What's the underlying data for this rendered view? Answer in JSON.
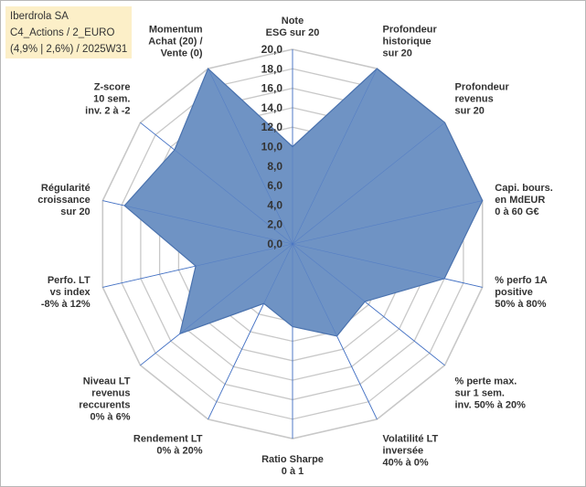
{
  "title_box": {
    "line1": "Iberdrola SA",
    "line2": "C4_Actions / 2_EURO",
    "line3": "(4,9% | 2,6%) / 2025W31"
  },
  "chart_data": {
    "type": "radar",
    "r_min": 0,
    "r_max": 20,
    "tick_labels": [
      "0,0",
      "2,0",
      "4,0",
      "6,0",
      "8,0",
      "10,0",
      "12,0",
      "14,0",
      "16,0",
      "18,0",
      "20,0"
    ],
    "axes": [
      {
        "lines": [
          "Note",
          "ESG sur 20"
        ],
        "value": 10
      },
      {
        "lines": [
          "Profondeur",
          "historique",
          "sur 20"
        ],
        "value": 20
      },
      {
        "lines": [
          "Profondeur",
          "revenus",
          "sur 20"
        ],
        "value": 20
      },
      {
        "lines": [
          "Capi. bours.",
          "en MdEUR",
          "0 à 60 G€"
        ],
        "value": 20
      },
      {
        "lines": [
          "% perfo 1A",
          "positive",
          "50% à 80%"
        ],
        "value": 16
      },
      {
        "lines": [
          "% perte max.",
          "sur 1 sem.",
          "inv. 50% à 20%"
        ],
        "value": 9.5
      },
      {
        "lines": [
          "Volatilité LT",
          "inversée",
          "40% à 0%"
        ],
        "value": 10.5
      },
      {
        "lines": [
          "Ratio Sharpe",
          "0 à 1"
        ],
        "value": 8.5
      },
      {
        "lines": [
          "Rendement LT",
          "0% à 20%"
        ],
        "value": 6.8
      },
      {
        "lines": [
          "Niveau LT",
          "revenus",
          "reccurents",
          "0% à 6%"
        ],
        "value": 14.8
      },
      {
        "lines": [
          "Perfo. LT",
          "vs index",
          "-8% à 12%"
        ],
        "value": 10.2
      },
      {
        "lines": [
          "Régularité",
          "croissance",
          "sur 20"
        ],
        "value": 17.7
      },
      {
        "lines": [
          "Z-score",
          "10 sem.",
          "inv. 2 à -2"
        ],
        "value": 15.5
      },
      {
        "lines": [
          "Momentum",
          "Achat (20) /",
          "Vente (0)"
        ],
        "value": 20
      }
    ],
    "colors": {
      "fill": "#6f93c4",
      "stroke": "#4a72ae",
      "grid": "#c8c8c8",
      "spoke": "#4472c4"
    }
  }
}
